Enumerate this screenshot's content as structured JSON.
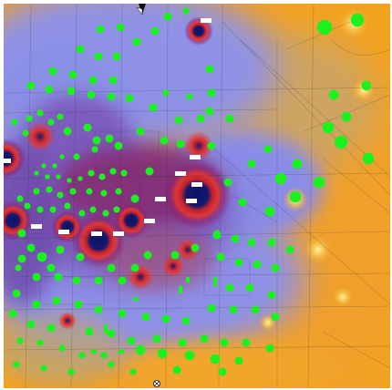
{
  "map": {
    "labels": [
      "",
      "",
      "",
      "",
      "",
      "",
      "",
      "",
      "",
      "",
      "",
      ""
    ],
    "colors": {
      "low_field": "#f3a21f",
      "mid_low": "#d7ad62",
      "mid": "#8e90e8",
      "mid_high": "#7a57b8",
      "high": "#8a1f6f",
      "peak_ring": "#e8362d",
      "peak_core": "#15186c",
      "trees": "#19f21e",
      "roads": "#2a2a2a"
    },
    "icons": [
      "compass-north-icon",
      "scale-marker-icon"
    ]
  }
}
